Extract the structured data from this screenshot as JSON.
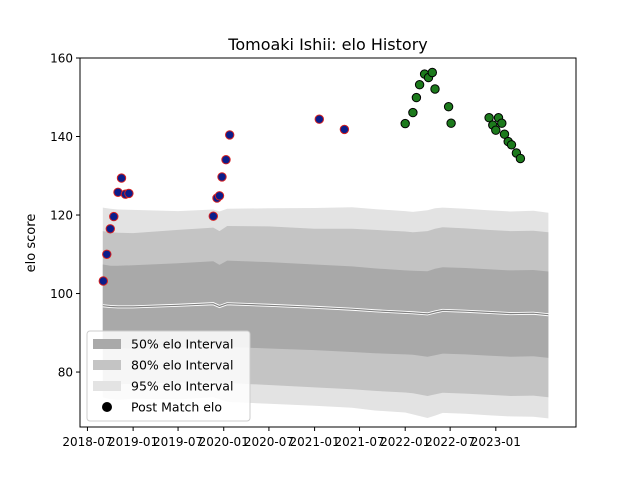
{
  "chart_data": {
    "type": "scatter",
    "title": "Tomoaki Ishii: elo History",
    "xlabel": "",
    "ylabel": "elo score",
    "x_range": [
      "2018-06-01",
      "2023-11-20"
    ],
    "ylim": [
      66,
      160
    ],
    "x_ticks": [
      "2018-07",
      "2019-01",
      "2019-07",
      "2020-01",
      "2020-07",
      "2021-01",
      "2021-07",
      "2022-01",
      "2022-07",
      "2023-01"
    ],
    "y_ticks": [
      80,
      100,
      120,
      140,
      160
    ],
    "grid": false,
    "legend_position": "lower-left",
    "legend": [
      {
        "label": "50% elo Interval",
        "color": "#a9a9a9"
      },
      {
        "label": "80% elo Interval",
        "color": "#c4c4c4"
      },
      {
        "label": "95% elo Interval",
        "color": "#e3e3e3"
      },
      {
        "label": "Post Match elo",
        "color": "#000000"
      }
    ],
    "colors": {
      "band_50": "#a9a9a9",
      "band_80": "#c4c4c4",
      "band_95": "#e3e3e3",
      "mean_line": "#808080",
      "mean_highlight": "#ffffff",
      "point_blue_fill": "#0b1d8a",
      "point_blue_edge": "#d62020",
      "point_green_fill": "#1c7a1c",
      "point_green_edge": "#000000"
    },
    "bands": {
      "dates": [
        "2018-09-01",
        "2018-10-01",
        "2018-11-01",
        "2019-01-01",
        "2019-07-01",
        "2019-11-20",
        "2019-12-15",
        "2020-01-15",
        "2020-07-01",
        "2021-01-01",
        "2021-06-01",
        "2021-09-01",
        "2022-01-01",
        "2022-02-01",
        "2022-04-01",
        "2022-05-01",
        "2022-06-01",
        "2022-09-01",
        "2022-12-01",
        "2023-03-01",
        "2023-06-01",
        "2023-08-01"
      ],
      "mean": [
        96.9,
        96.7,
        96.6,
        96.6,
        97.0,
        97.4,
        96.7,
        97.4,
        97.0,
        96.5,
        96.0,
        95.6,
        95.2,
        95.1,
        94.8,
        95.3,
        95.7,
        95.5,
        95.2,
        94.9,
        95.0,
        94.6
      ],
      "p50_low": [
        86.6,
        86.3,
        86.1,
        86.0,
        86.3,
        86.6,
        86.1,
        86.4,
        86.0,
        85.6,
        85.1,
        84.8,
        84.5,
        84.4,
        83.9,
        84.3,
        84.7,
        84.5,
        84.2,
        83.9,
        84.0,
        83.6
      ],
      "p50_high": [
        107.4,
        107.1,
        107.1,
        107.2,
        107.7,
        108.2,
        107.3,
        108.4,
        108.0,
        107.4,
        106.9,
        106.4,
        105.9,
        105.8,
        105.7,
        106.3,
        106.7,
        106.5,
        106.2,
        105.9,
        106.0,
        105.6
      ],
      "p80_low": [
        77.6,
        77.1,
        76.9,
        77.0,
        77.3,
        77.6,
        77.1,
        77.2,
        76.7,
        76.1,
        75.6,
        75.2,
        74.8,
        74.6,
        73.9,
        74.3,
        74.7,
        74.5,
        74.2,
        73.9,
        74.0,
        73.6
      ],
      "p80_high": [
        115.9,
        115.6,
        115.5,
        115.4,
        116.2,
        116.8,
        115.9,
        117.2,
        117.1,
        116.5,
        116.5,
        116.2,
        115.8,
        115.6,
        115.9,
        116.5,
        116.9,
        116.6,
        116.2,
        115.9,
        116.0,
        115.6
      ],
      "p95_low": [
        73.6,
        73.1,
        72.9,
        73.2,
        73.0,
        73.6,
        73.1,
        72.4,
        71.9,
        71.4,
        70.9,
        70.2,
        69.7,
        69.2,
        68.3,
        68.9,
        69.6,
        69.4,
        69.0,
        68.7,
        68.6,
        68.2
      ],
      "p95_high": [
        121.9,
        121.6,
        121.4,
        121.3,
        121.0,
        121.4,
        120.9,
        121.6,
        121.7,
        121.8,
        122.0,
        121.5,
        121.0,
        120.8,
        121.2,
        121.7,
        121.9,
        121.6,
        121.2,
        120.9,
        121.1,
        120.6
      ]
    },
    "series": [
      {
        "group": "blue",
        "x": [
          "2018-09-03",
          "2018-09-17",
          "2018-10-01",
          "2018-10-15",
          "2018-11-01",
          "2018-11-15",
          "2018-12-01",
          "2018-12-15",
          "2019-11-20",
          "2019-12-05",
          "2019-12-15",
          "2019-12-25",
          "2020-01-10",
          "2020-01-25",
          "2021-01-20",
          "2021-05-01"
        ],
        "y": [
          103.2,
          110.0,
          116.5,
          119.6,
          125.8,
          129.4,
          125.3,
          125.5,
          119.7,
          124.3,
          124.9,
          129.7,
          134.1,
          140.4,
          144.4,
          141.8
        ]
      },
      {
        "group": "green",
        "x": [
          "2022-01-01",
          "2022-02-01",
          "2022-02-15",
          "2022-02-28",
          "2022-03-20",
          "2022-04-05",
          "2022-04-20",
          "2022-05-01",
          "2022-06-25",
          "2022-07-05",
          "2022-12-05",
          "2022-12-20",
          "2023-01-01",
          "2023-01-12",
          "2023-01-25",
          "2023-02-05",
          "2023-02-20",
          "2023-03-05",
          "2023-03-25",
          "2023-04-10"
        ],
        "y": [
          143.3,
          146.1,
          149.9,
          153.2,
          155.9,
          155.0,
          156.3,
          152.1,
          147.6,
          143.4,
          144.8,
          142.9,
          141.6,
          144.8,
          143.4,
          140.6,
          138.7,
          137.9,
          135.8,
          134.4
        ]
      }
    ]
  }
}
